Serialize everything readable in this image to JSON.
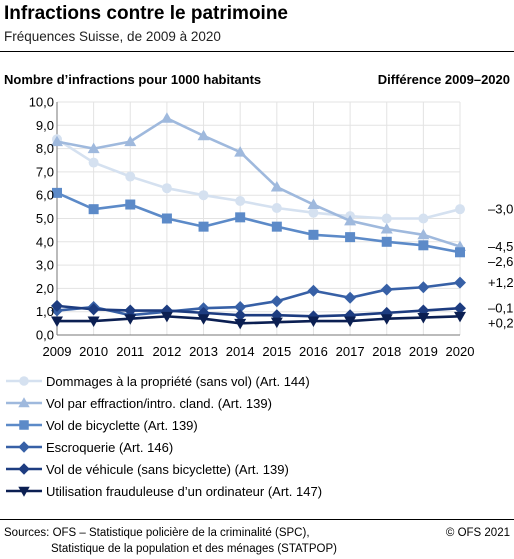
{
  "title": "Infractions contre le patrimoine",
  "subtitle": "Fréquences Suisse, de 2009 à 2020",
  "footer": {
    "sources_line1": "Sources: OFS – Statistique policière de la criminalité (SPC),",
    "sources_line2": "Statistique de la population et des ménages (STATPOP)",
    "copyright": "© OFS 2021"
  },
  "chart_data": {
    "type": "line",
    "ylabel": "Nombre d’infractions pour 1000 habitants",
    "difference_label": "Différence 2009–2020",
    "x": [
      "2009",
      "2010",
      "2011",
      "2012",
      "2013",
      "2014",
      "2015",
      "2016",
      "2017",
      "2018",
      "2019",
      "2020"
    ],
    "ylim": [
      0,
      10
    ],
    "yticks": [
      "0,0",
      "1,0",
      "2,0",
      "3,0",
      "4,0",
      "5,0",
      "6,0",
      "7,0",
      "8,0",
      "9,0",
      "10,0"
    ],
    "grid": true,
    "legend_position": "bottom",
    "series": [
      {
        "name": "Dommages à la propriété (sans vol) (Art. 144)",
        "marker": "circle",
        "color": "#d5e1f0",
        "values": [
          8.4,
          7.4,
          6.8,
          6.3,
          6.0,
          5.75,
          5.45,
          5.25,
          5.1,
          5.0,
          5.0,
          5.4
        ],
        "difference": "–3,0"
      },
      {
        "name": "Vol par effraction/intro. cland. (Art. 139)",
        "marker": "triangle",
        "color": "#9fb9dd",
        "values": [
          8.3,
          8.0,
          8.3,
          9.3,
          8.55,
          7.85,
          6.35,
          5.6,
          4.9,
          4.55,
          4.3,
          3.8
        ],
        "difference": "–4,5"
      },
      {
        "name": "Vol de bicyclette (Art. 139)",
        "marker": "square",
        "color": "#5c8ac8",
        "values": [
          6.1,
          5.4,
          5.6,
          5.0,
          4.65,
          5.05,
          4.65,
          4.3,
          4.2,
          4.0,
          3.85,
          3.55
        ],
        "difference": "–2,6"
      },
      {
        "name": "Escroquerie (Art. 146)",
        "marker": "diamond",
        "color": "#3760a6",
        "values": [
          1.05,
          1.2,
          0.85,
          1.0,
          1.15,
          1.2,
          1.45,
          1.9,
          1.6,
          1.95,
          2.05,
          2.25
        ],
        "difference": "+1,2"
      },
      {
        "name": "Vol de véhicule (sans bicyclette) (Art. 139)",
        "marker": "diamond",
        "color": "#1d3c80",
        "values": [
          1.25,
          1.1,
          1.05,
          1.05,
          0.95,
          0.85,
          0.85,
          0.8,
          0.85,
          0.95,
          1.05,
          1.15
        ],
        "difference": "–0,1"
      },
      {
        "name": "Utilisation frauduleuse d’un ordinateur (Art. 147)",
        "marker": "triangle-down",
        "color": "#0b1f52",
        "values": [
          0.6,
          0.6,
          0.7,
          0.8,
          0.7,
          0.5,
          0.55,
          0.6,
          0.6,
          0.7,
          0.75,
          0.8
        ],
        "difference": "+0,2"
      }
    ]
  }
}
